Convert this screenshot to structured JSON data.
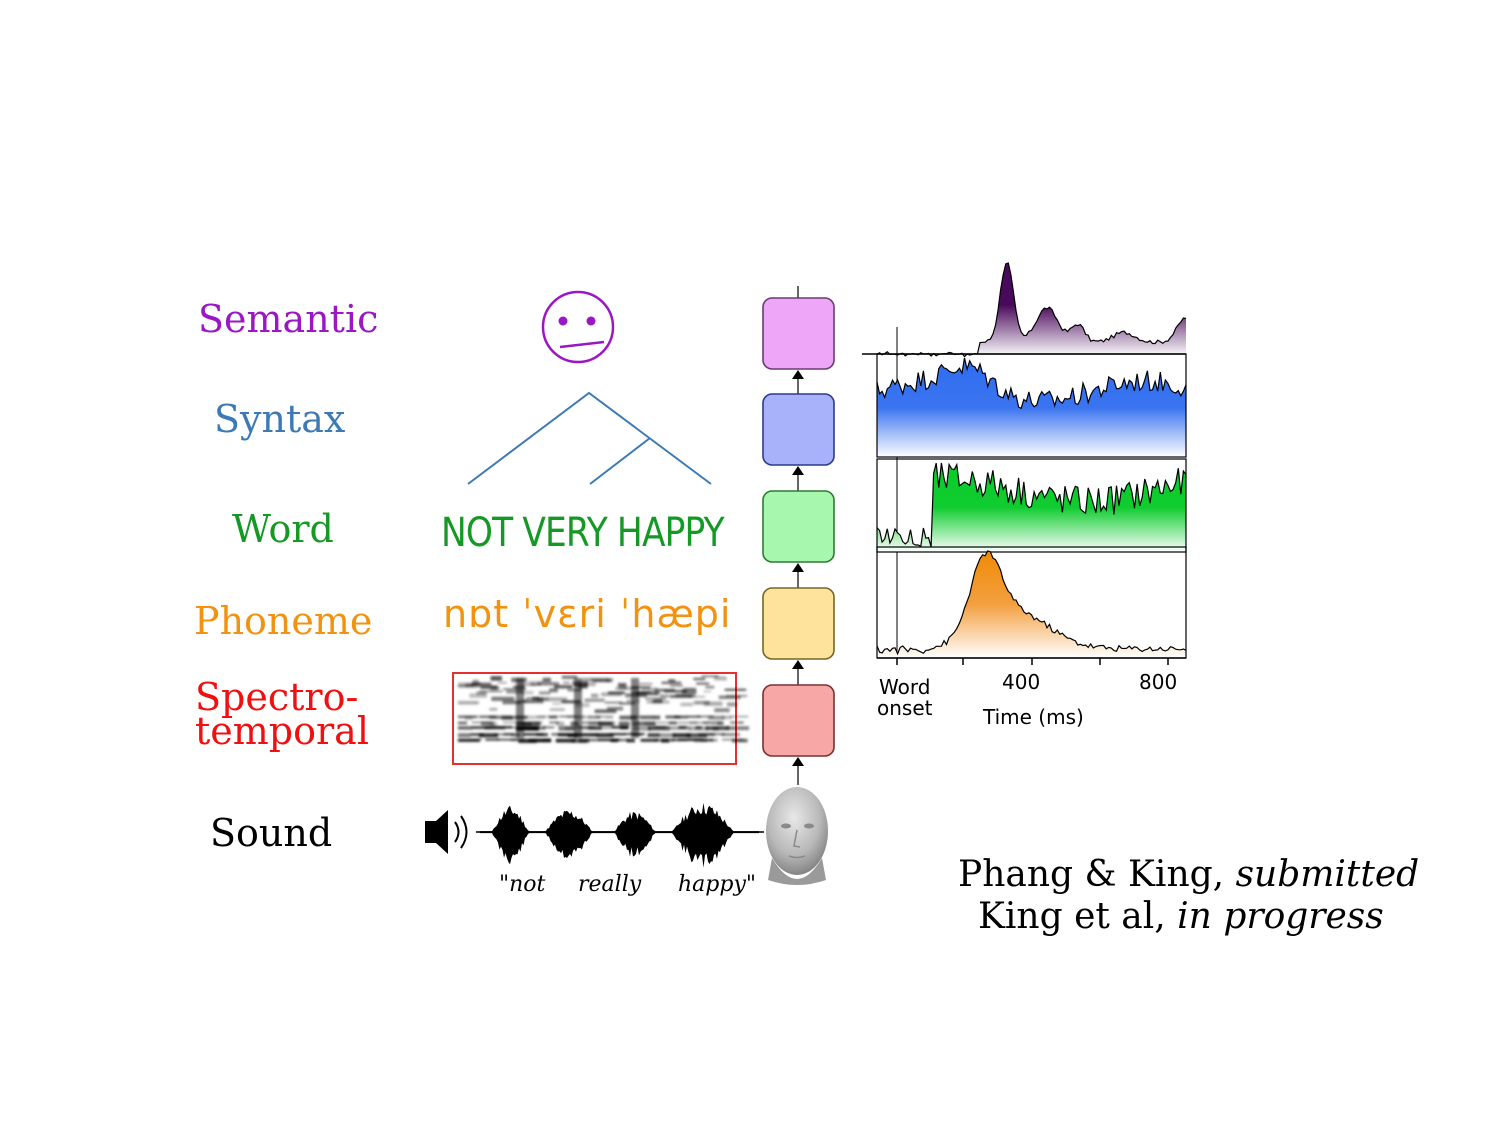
{
  "levels": [
    {
      "key": "semantic",
      "label": "Semantic",
      "color": "#9b17c4",
      "box_color": "#eda6f8",
      "box_border": "#6b3c70"
    },
    {
      "key": "syntax",
      "label": "Syntax",
      "color": "#3d7ab5",
      "box_color": "#a7b2fb",
      "box_border": "#2d3a8a"
    },
    {
      "key": "word",
      "label": "Word",
      "color": "#149a24",
      "box_color": "#a7f8ae",
      "box_border": "#2f7a34"
    },
    {
      "key": "phoneme",
      "label": "Phoneme",
      "color": "#f2920f",
      "box_color": "#fde39b",
      "box_border": "#7a6424"
    },
    {
      "key": "spectro",
      "label_line1": "Spectro-",
      "label_line2": "temporal",
      "color": "#f20f0f",
      "box_color": "#f8a7a7",
      "box_border": "#7a3030"
    },
    {
      "key": "sound",
      "label": "Sound",
      "color": "#000000"
    }
  ],
  "examples": {
    "word_text": "NOT VERY HAPPY",
    "phoneme_text": "nɒt ˈvɛri ˈhæpi",
    "sound_words": [
      "\"not",
      "really",
      "happy\""
    ]
  },
  "icons": {
    "semantic": "confused-face-icon",
    "sound": "speaker-icon",
    "listener": "head-icon"
  },
  "timecourse": {
    "ticks": [
      "400",
      "800"
    ],
    "onset_label_line1": "Word",
    "onset_label_line2": "onset",
    "xlabel": "Time (ms)",
    "series": [
      {
        "key": "semantic",
        "fill": "#4a0a5c"
      },
      {
        "key": "syntax",
        "fill": "#2f6df0"
      },
      {
        "key": "word",
        "fill": "#0acc2a"
      },
      {
        "key": "phoneme",
        "fill": "#f08a06"
      }
    ]
  },
  "citation": {
    "line1_plain": "Phang & King, ",
    "line1_italic": "submitted",
    "line2_plain": "King et al, ",
    "line2_italic": "in progress"
  }
}
